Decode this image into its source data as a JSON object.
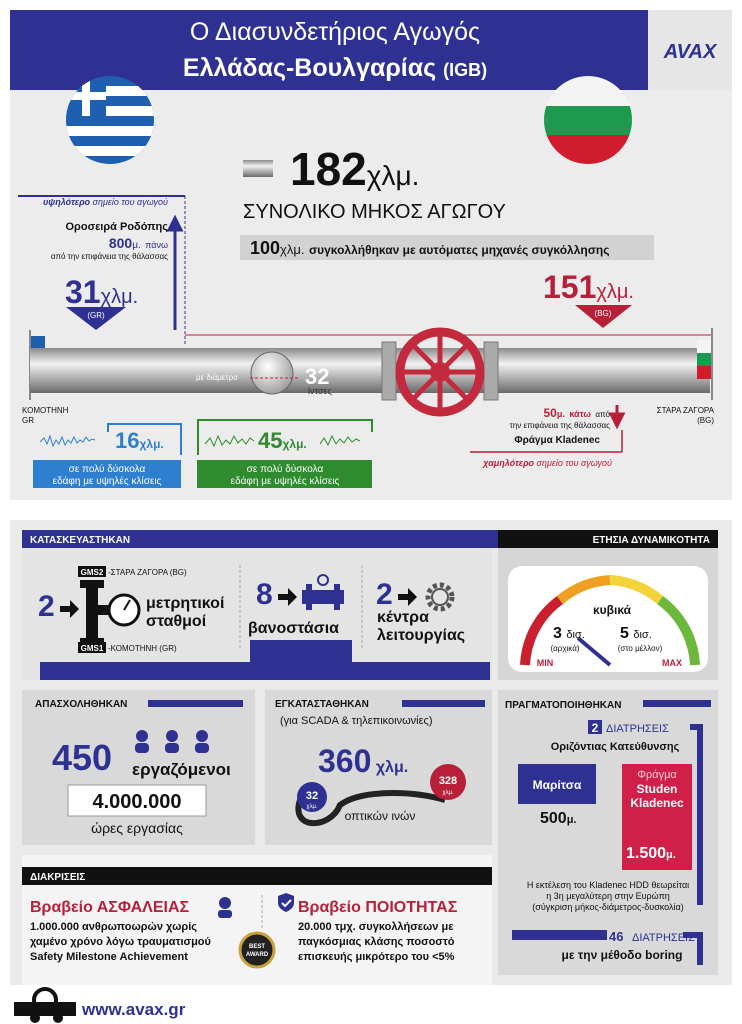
{
  "header": {
    "title_line1": "Ο Διασυνδετήριος Αγωγός",
    "title_line2": "Ελλάδας-Βουλγαρίας",
    "title_tag": "(IGB)",
    "logo": "AVAX"
  },
  "route": {
    "total": {
      "value": "182",
      "unit": "χλμ.",
      "label": "ΣΥΝΟΛΙΚΟ ΜΗΚΟΣ ΑΓΩΓΟΥ"
    },
    "welded": {
      "value": "100",
      "unit": "χλμ.",
      "text": "συγκολλήθηκαν με αυτόματες μηχανές συγκόλλησης"
    },
    "highest": {
      "emphasis": "υψηλότερο",
      "note": "σημείο του αγωγού",
      "name": "Οροσειρά Ροδόπης",
      "value": "800",
      "unit": "μ.",
      "direction": "πάνω",
      "reference": "από την επιφάνεια της θάλασσας"
    },
    "greece": {
      "value": "31",
      "unit": "χλμ.",
      "code": "(GR)"
    },
    "bulgaria": {
      "value": "151",
      "unit": "χλμ.",
      "code": "(BG)"
    },
    "diameter": {
      "label": "με διάμετρο",
      "value": "32",
      "unit": "ίντσες"
    },
    "start": {
      "city": "ΚΟΜΟΤΗΝΗ",
      "country": "GR"
    },
    "end": {
      "city": "ΣΤΑΡΑ ΖΑΓΟΡΑ",
      "country": "(BG)"
    },
    "terrain_gr": {
      "value": "16",
      "unit": "χλμ.",
      "line1": "σε πολύ δύσκολα",
      "line2": "εδάφη με υψηλές κλίσεις"
    },
    "terrain_bg": {
      "value": "45",
      "unit": "χλμ.",
      "line1": "σε πολύ δύσκολα",
      "line2": "εδάφη με υψηλές κλίσεις"
    },
    "lowest": {
      "value": "50",
      "unit": "μ.",
      "direction": "κάτω",
      "from": "από",
      "reference": "την επιφάνεια της θάλασσας",
      "name": "Φράγμα Kladenec",
      "emphasis": "χαμηλότερο",
      "note": "σημείο του αγωγού"
    }
  },
  "construction": {
    "header": "ΚΑΤΑΣΚΕΥΑΣΤΗΚΑΝ",
    "stations": {
      "count": "2",
      "line1": "μετρητικοί",
      "line2": "σταθμοί",
      "gms2": "GMS2",
      "gms2_location": "-ΣΤΑΡΑ ΖΑΓΟΡΑ (BG)",
      "gms1": "GMS1",
      "gms1_location": "-ΚΟΜΟΤΗΝΗ (GR)"
    },
    "valves": {
      "count": "8",
      "label": "βανοστάσια"
    },
    "centers": {
      "count": "2",
      "line1": "κέντρα",
      "line2": "λειτουργίας"
    }
  },
  "capacity": {
    "header": "ΕΤΗΣΙΑ ΔΥΝΑΜΙΚΟΤΗΤΑ",
    "unit": "κυβικά",
    "initial": {
      "value": "3",
      "unit": "δισ.",
      "note": "(αρχικά)"
    },
    "future": {
      "value": "5",
      "unit": "δισ.",
      "note": "(στο μέλλον)"
    },
    "min": "MIN",
    "max": "MAX"
  },
  "employment": {
    "header": "ΑΠΑΣΧΟΛΗΘΗΚΑΝ",
    "workers": "450",
    "workers_label": "εργαζόμενοι",
    "hours": "4.000.000",
    "hours_label": "ώρες εργασίας"
  },
  "installed": {
    "header": "ΕΓΚΑΤΑΣΤΑΘΗΚΑΝ",
    "subtitle": "(για SCADA & τηλεπικοινωνίες)",
    "value": "360",
    "unit": "χλμ.",
    "label": "οπτικών ινών",
    "badge_gr": {
      "value": "32",
      "unit": "χλμ."
    },
    "badge_bg": {
      "value": "328",
      "unit": "χλμ."
    }
  },
  "drilling": {
    "header": "ΠΡΑΓΜΑΤΟΠΟΙΗΘΗΚΑΝ",
    "hdd_count": "2",
    "hdd_label": "ΔΙΑΤΡΗΣΕΙΣ",
    "hdd_type": "Οριζόντιας Κατεύθυνσης",
    "maritsa": {
      "name": "Μαρίτσα",
      "value": "500",
      "unit": "μ."
    },
    "kladenec": {
      "prefix": "Φράγμα",
      "name_line1": "Studen",
      "name_line2": "Kladenec",
      "value": "1.500",
      "unit": "μ."
    },
    "note": [
      "Η εκτέλεση του Kladenec HDD θεωρείται",
      "η 3η μεγαλύτερη στην Ευρώπη",
      "(σύγκριση μήκος-διάμετρος-δυσκολία)"
    ],
    "boring_count": "46",
    "boring_label": "ΔΙΑΤΡΗΣΕΙΣ",
    "boring_method": "με την μέθοδο boring"
  },
  "awards": {
    "header": "ΔΙΑΚΡΙΣΕΙΣ",
    "safety": {
      "prefix": "Βραβείο",
      "title": "ΑΣΦΑΛΕΙΑΣ",
      "lines": [
        "1.000.000 ανθρωποωρών χωρίς",
        "χαμένο χρόνο λόγω τραυματισμού",
        "Safety Milestone Achievement"
      ]
    },
    "badge": [
      "BEST",
      "AWARD"
    ],
    "quality": {
      "prefix": "Βραβείο",
      "title": "ΠΟΙΟΤΗΤΑΣ",
      "lines": [
        "20.000 τμχ. συγκολλήσεων με",
        "παγκόσμιας κλάσης ποσοστό",
        "επισκευής μικρότερο του <5%"
      ]
    }
  },
  "footer": {
    "url": "www.avax.gr"
  }
}
